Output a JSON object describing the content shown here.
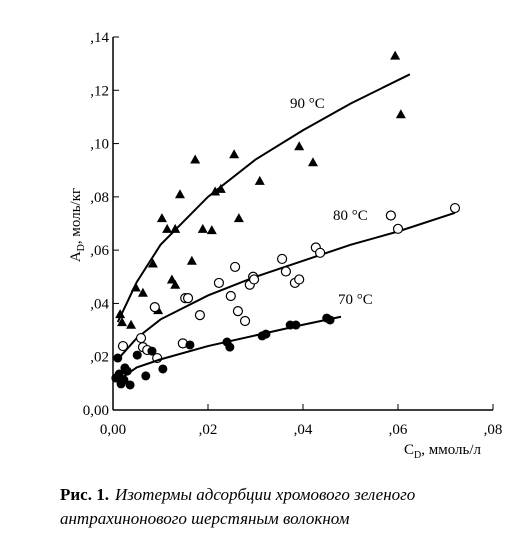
{
  "chart_data": {
    "type": "scatter",
    "y_label": {
      "main": "A",
      "sub": "D",
      "rest": ", моль/кг"
    },
    "x_label": {
      "main": "C",
      "sub": "D",
      "rest": ", ммоль/л"
    },
    "xlim": [
      0,
      0.08
    ],
    "ylim": [
      0,
      0.14
    ],
    "xticks": [
      {
        "value": 0,
        "label": "0,00"
      },
      {
        "value": 0.02,
        "label": ",02"
      },
      {
        "value": 0.04,
        "label": ",04"
      },
      {
        "value": 0.06,
        "label": ",06"
      },
      {
        "value": 0.08,
        "label": ",08"
      }
    ],
    "yticks": [
      {
        "value": 0,
        "label": "0,00"
      },
      {
        "value": 0.02,
        "label": ",02"
      },
      {
        "value": 0.04,
        "label": ",04"
      },
      {
        "value": 0.06,
        "label": ",06"
      },
      {
        "value": 0.08,
        "label": ",08"
      },
      {
        "value": 0.1,
        "label": ",10"
      },
      {
        "value": 0.12,
        "label": ",12"
      },
      {
        "value": 0.14,
        "label": ",14"
      }
    ],
    "grid": false,
    "series": [
      {
        "name": "90 °C",
        "marker": "triangle",
        "color": "#000000",
        "x": [
          0.0015,
          0.0019,
          0.0038,
          0.0048,
          0.0063,
          0.0084,
          0.0095,
          0.0103,
          0.0114,
          0.0131,
          0.0124,
          0.0131,
          0.0141,
          0.0166,
          0.0173,
          0.0189,
          0.0208,
          0.0215,
          0.0227,
          0.0255,
          0.0265,
          0.0309,
          0.0392,
          0.0421,
          0.0594,
          0.0606
        ],
        "values": [
          0.036,
          0.033,
          0.032,
          0.046,
          0.044,
          0.055,
          0.0375,
          0.072,
          0.068,
          0.068,
          0.049,
          0.047,
          0.081,
          0.056,
          0.094,
          0.068,
          0.0675,
          0.082,
          0.083,
          0.096,
          0.072,
          0.086,
          0.099,
          0.093,
          0.133,
          0.111
        ],
        "fit_x": [
          0.001,
          0.005,
          0.01,
          0.02,
          0.03,
          0.04,
          0.05,
          0.0625
        ],
        "fit_values": [
          0.033,
          0.048,
          0.062,
          0.08,
          0.094,
          0.105,
          0.115,
          0.126
        ]
      },
      {
        "name": "80 °C",
        "marker": "open-circle",
        "color": "#000000",
        "x": [
          0.0021,
          0.0059,
          0.0063,
          0.0072,
          0.0088,
          0.0093,
          0.0152,
          0.0158,
          0.0147,
          0.0183,
          0.0223,
          0.0248,
          0.0257,
          0.0263,
          0.0278,
          0.0288,
          0.0295,
          0.0297,
          0.0356,
          0.0364,
          0.0383,
          0.0392,
          0.0427,
          0.0436,
          0.0585,
          0.06,
          0.072
        ],
        "values": [
          0.024,
          0.027,
          0.0236,
          0.0225,
          0.0386,
          0.0195,
          0.042,
          0.042,
          0.025,
          0.0356,
          0.0477,
          0.0428,
          0.0537,
          0.0371,
          0.0334,
          0.047,
          0.05,
          0.049,
          0.0567,
          0.052,
          0.0477,
          0.049,
          0.061,
          0.059,
          0.073,
          0.068,
          0.0758
        ],
        "fit_x": [
          0.001,
          0.005,
          0.01,
          0.02,
          0.03,
          0.04,
          0.05,
          0.06,
          0.072
        ],
        "fit_values": [
          0.019,
          0.027,
          0.034,
          0.043,
          0.05,
          0.056,
          0.062,
          0.067,
          0.074
        ]
      },
      {
        "name": "70 °C",
        "marker": "filled-circle",
        "color": "#000000",
        "x": [
          0.0006,
          0.001,
          0.0013,
          0.0017,
          0.0023,
          0.0025,
          0.003,
          0.0036,
          0.0051,
          0.0069,
          0.0082,
          0.0105,
          0.0162,
          0.024,
          0.0246,
          0.0314,
          0.0322,
          0.0373,
          0.0385,
          0.045,
          0.0457
        ],
        "values": [
          0.012,
          0.0195,
          0.0135,
          0.0098,
          0.0113,
          0.0158,
          0.0146,
          0.0094,
          0.0206,
          0.0128,
          0.0221,
          0.0154,
          0.0244,
          0.0255,
          0.0236,
          0.0278,
          0.0285,
          0.0319,
          0.0319,
          0.0345,
          0.0338
        ],
        "fit_x": [
          0.001,
          0.005,
          0.01,
          0.02,
          0.03,
          0.04,
          0.048
        ],
        "fit_values": [
          0.011,
          0.016,
          0.019,
          0.024,
          0.028,
          0.032,
          0.035
        ]
      }
    ],
    "caption": {
      "label": "Рис. 1.",
      "line1": "Изотермы адсорбции хромового зеленого",
      "line2": "антрахинонового шерстяным волокном"
    }
  }
}
